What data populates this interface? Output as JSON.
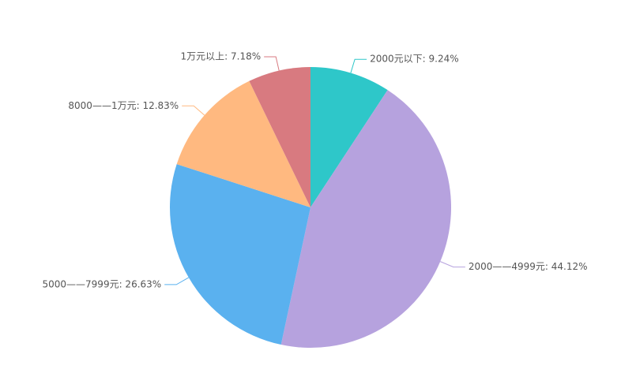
{
  "chart_data": {
    "type": "pie",
    "values": [
      9.24,
      44.12,
      26.63,
      12.83,
      7.18
    ],
    "value_labels": [
      "2000元以下: 9.24%",
      "2000——4999元: 44.12%",
      "5000——7999元: 26.63%",
      "8000——1万元: 12.83%",
      "1万元以上: 7.18%"
    ],
    "colors": [
      "#2ec7c9",
      "#b6a2de",
      "#5ab1ef",
      "#ffb980",
      "#d87a80"
    ]
  }
}
